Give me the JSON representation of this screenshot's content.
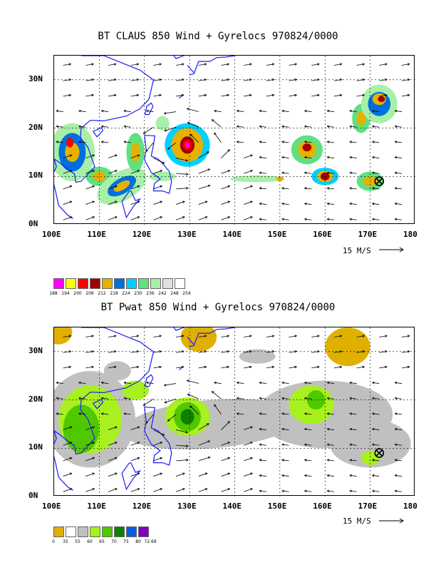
{
  "map1": {
    "title": "BT CLAUS 850 Wind + Gyrelocs 970824/0000",
    "legend_labels": [
      "188",
      "194",
      "200",
      "206",
      "212",
      "218",
      "224",
      "230",
      "236",
      "242",
      "248",
      "254"
    ],
    "legend_colors": [
      "#ff00ff",
      "#ffff00",
      "#ff0000",
      "#a00000",
      "#e8b000",
      "#0070e0",
      "#00d0ff",
      "#60e080",
      "#a8f0a8",
      "#e0e0e0",
      "#ffffff"
    ]
  },
  "map2": {
    "title": "BT Pwat 850 Wind + Gyrelocs 970824/0000",
    "legend_labels": [
      "0",
      "35",
      "55",
      "60",
      "65",
      "70",
      "75",
      "80",
      "72.69"
    ],
    "legend_colors": [
      "#e0b000",
      "#ffffff",
      "#c0c0c0",
      "#a8f020",
      "#50c800",
      "#108000",
      "#0060e0",
      "#8000c0"
    ]
  },
  "axes": {
    "x_ticks": [
      "100E",
      "110E",
      "120E",
      "130E",
      "140E",
      "150E",
      "160E",
      "170E",
      "180"
    ],
    "y_ticks": [
      "0N",
      "10N",
      "20N",
      "30N"
    ],
    "scale_text": "15 M/S"
  },
  "gyre_locations": [
    {
      "lon": 172.0,
      "lat": 9.0
    }
  ],
  "storm_center": {
    "lon": 129.5,
    "lat": 16.5
  }
}
